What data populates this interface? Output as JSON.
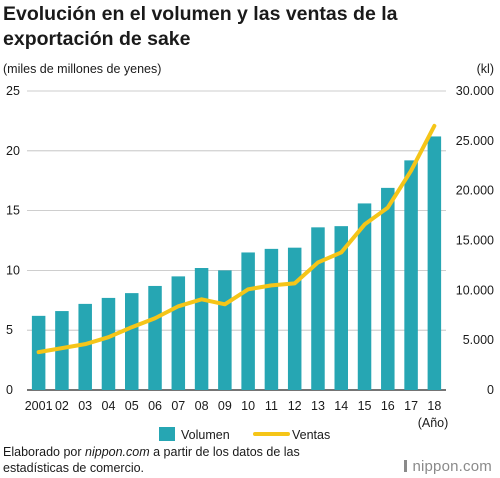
{
  "title": "Evolución en el volumen y las ventas de la exportación de sake",
  "source": {
    "prefix": "Elaborado por ",
    "brand": "nippon.com",
    "suffix": " a partir de los datos de las estadísticas de comercio."
  },
  "logo_text": "nippon.com",
  "chart_data": {
    "type": "bar+line",
    "categories": [
      "2001",
      "02",
      "03",
      "04",
      "05",
      "06",
      "07",
      "08",
      "09",
      "10",
      "11",
      "12",
      "13",
      "14",
      "15",
      "16",
      "17",
      "18"
    ],
    "x_unit_label": "(Año)",
    "y_left": {
      "label": "(miles de millones de yenes)",
      "ticks": [
        "0",
        "5",
        "10",
        "15",
        "20",
        "25"
      ],
      "range": [
        0,
        25
      ]
    },
    "y_right": {
      "label": "(kl)",
      "ticks": [
        "0",
        "5.000",
        "10.000",
        "15.000",
        "20.000",
        "25.000",
        "30.000"
      ],
      "range": [
        0,
        30000
      ]
    },
    "series": [
      {
        "name": "Volumen",
        "type": "bar",
        "axis": "left",
        "color": "#26a6b3",
        "values": [
          6.2,
          6.6,
          7.2,
          7.7,
          8.1,
          8.7,
          9.5,
          10.2,
          10.0,
          11.5,
          11.8,
          11.9,
          13.6,
          13.7,
          15.6,
          16.9,
          19.2,
          21.2
        ]
      },
      {
        "name": "Ventas",
        "type": "line",
        "axis": "right",
        "color": "#f5c518",
        "values": [
          3800,
          4200,
          4600,
          5300,
          6300,
          7200,
          8400,
          9100,
          8600,
          10100,
          10500,
          10700,
          12800,
          13800,
          16600,
          18300,
          22000,
          26500
        ]
      }
    ],
    "grid": "horizontal",
    "legend": "bottom-center"
  }
}
